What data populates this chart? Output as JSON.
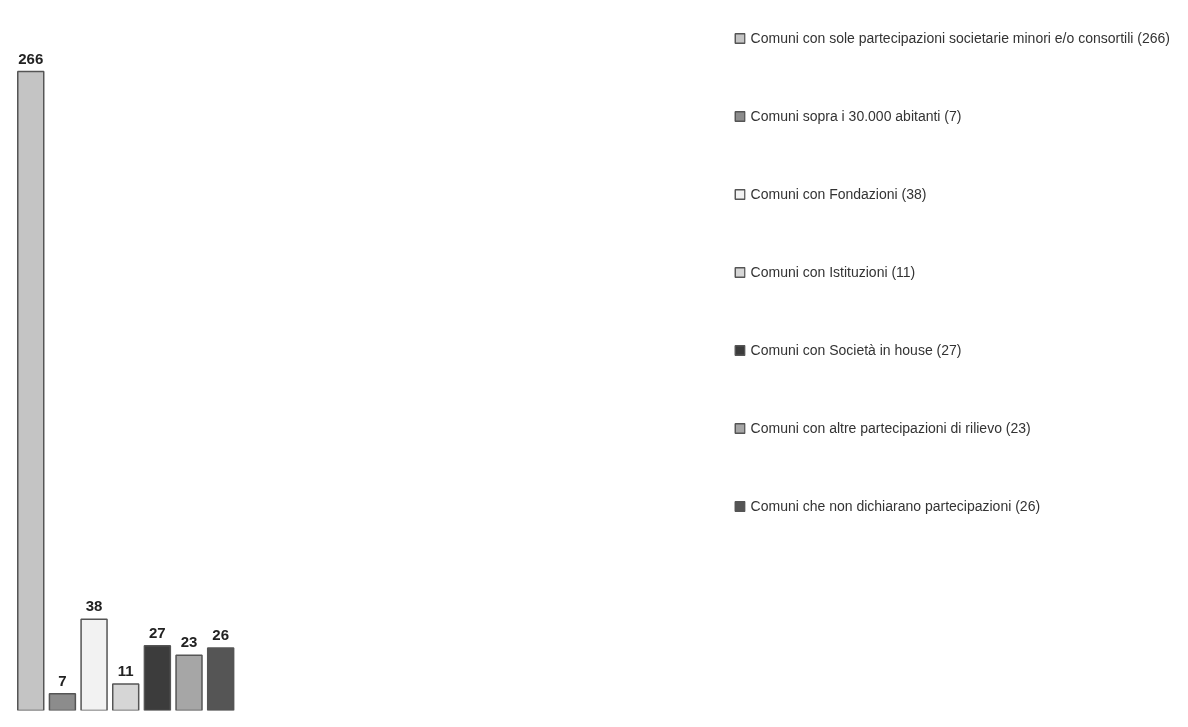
{
  "chart_data": {
    "type": "bar",
    "categories": [
      null
    ],
    "series": [
      {
        "name": "Comuni con sole partecipazioni societarie minori e/o consortili (266)",
        "color": "#c4c4c4",
        "values": [
          266
        ]
      },
      {
        "name": "Comuni sopra i 30.000 abitanti (7)",
        "color": "#8c8c8c",
        "values": [
          7
        ]
      },
      {
        "name": "Comuni con Fondazioni (38)",
        "color": "#f2f2f2",
        "values": [
          38
        ]
      },
      {
        "name": "Comuni con Istituzioni (11)",
        "color": "#d6d6d6",
        "values": [
          11
        ]
      },
      {
        "name": "Comuni con Società in house (27)",
        "color": "#3c3c3c",
        "values": [
          27
        ]
      },
      {
        "name": "Comuni con altre partecipazioni di rilievo (23)",
        "color": "#a6a6a6",
        "values": [
          23
        ]
      },
      {
        "name": "Comuni che non dichiarano partecipazioni (26)",
        "color": "#555555",
        "values": [
          26
        ]
      }
    ],
    "data_labels": true,
    "legend": "right"
  }
}
